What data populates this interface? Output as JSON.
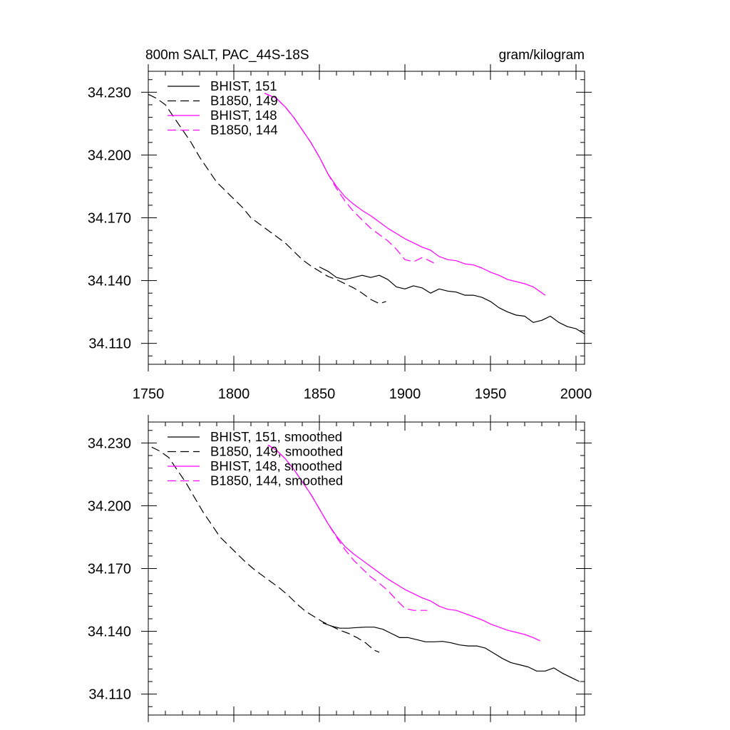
{
  "chart_data": [
    {
      "type": "line",
      "title": "800m SALT, PAC_44S-18S",
      "units": "gram/kilogram",
      "xlim": [
        1750,
        2005
      ],
      "ylim": [
        34.1,
        34.24
      ],
      "x_ticks": [
        1750,
        1800,
        1850,
        1900,
        1950,
        2000
      ],
      "x_tick_labels": [
        "1750",
        "1800",
        "1850",
        "1900",
        "1950",
        "2000"
      ],
      "y_ticks": [
        34.11,
        34.14,
        34.17,
        34.2,
        34.23
      ],
      "y_tick_labels": [
        "34.110",
        "34.140",
        "34.170",
        "34.200",
        "34.230"
      ],
      "legend_position": "top-left",
      "series": [
        {
          "name": "BHIST, 151",
          "color": "#000000",
          "dash": "solid",
          "x": [
            1850,
            1855,
            1860,
            1865,
            1870,
            1875,
            1880,
            1885,
            1890,
            1895,
            1900,
            1905,
            1910,
            1915,
            1920,
            1925,
            1930,
            1935,
            1940,
            1945,
            1950,
            1955,
            1960,
            1965,
            1970,
            1975,
            1980,
            1985,
            1990,
            1995,
            2000,
            2005
          ],
          "y": [
            34.1465,
            34.1445,
            34.1415,
            34.1405,
            34.1415,
            34.1425,
            34.1415,
            34.1425,
            34.1405,
            34.137,
            34.136,
            34.1375,
            34.1365,
            34.134,
            34.136,
            34.135,
            34.1345,
            34.133,
            34.133,
            34.132,
            34.13,
            34.127,
            34.125,
            34.1235,
            34.123,
            34.12,
            34.121,
            34.123,
            34.12,
            34.118,
            34.117,
            34.1145
          ]
        },
        {
          "name": "B1850, 149",
          "color": "#000000",
          "dash": "dashed",
          "x": [
            1750,
            1755,
            1760,
            1765,
            1770,
            1775,
            1780,
            1785,
            1790,
            1795,
            1800,
            1805,
            1810,
            1815,
            1820,
            1825,
            1830,
            1835,
            1840,
            1845,
            1850,
            1855,
            1860,
            1865,
            1870,
            1875,
            1880,
            1885,
            1889
          ],
          "y": [
            34.229,
            34.227,
            34.224,
            34.218,
            34.212,
            34.206,
            34.199,
            34.193,
            34.187,
            34.183,
            34.179,
            34.175,
            34.17,
            34.167,
            34.164,
            34.161,
            34.158,
            34.154,
            34.15,
            34.147,
            34.1445,
            34.142,
            34.1405,
            34.1385,
            34.1365,
            34.134,
            34.131,
            34.129,
            34.13
          ]
        },
        {
          "name": "BHIST, 148",
          "color": "#FF00FF",
          "dash": "solid",
          "x": [
            1818,
            1825,
            1830,
            1835,
            1840,
            1845,
            1850,
            1855,
            1860,
            1865,
            1870,
            1875,
            1880,
            1885,
            1890,
            1895,
            1900,
            1905,
            1910,
            1915,
            1920,
            1925,
            1930,
            1935,
            1940,
            1945,
            1950,
            1955,
            1960,
            1965,
            1970,
            1975,
            1982
          ],
          "y": [
            34.2295,
            34.227,
            34.223,
            34.218,
            34.212,
            34.206,
            34.199,
            34.191,
            34.185,
            34.18,
            34.1765,
            34.1735,
            34.171,
            34.168,
            34.165,
            34.1625,
            34.16,
            34.158,
            34.156,
            34.1545,
            34.1515,
            34.15,
            34.1495,
            34.148,
            34.1475,
            34.146,
            34.144,
            34.1425,
            34.1405,
            34.1395,
            34.1385,
            34.137,
            34.133
          ]
        },
        {
          "name": "B1850, 144",
          "color": "#FF00FF",
          "dash": "dashed",
          "x": [
            1818,
            1825,
            1830,
            1835,
            1840,
            1845,
            1850,
            1855,
            1860,
            1865,
            1870,
            1875,
            1880,
            1885,
            1890,
            1895,
            1900,
            1905,
            1910,
            1913,
            1918
          ],
          "y": [
            34.2295,
            34.227,
            34.223,
            34.218,
            34.212,
            34.206,
            34.199,
            34.191,
            34.184,
            34.178,
            34.173,
            34.169,
            34.165,
            34.162,
            34.159,
            34.155,
            34.15,
            34.149,
            34.151,
            34.15,
            34.148
          ]
        }
      ]
    },
    {
      "type": "line",
      "title": "",
      "units": "",
      "xlim": [
        1750,
        2005
      ],
      "ylim": [
        34.1,
        34.24
      ],
      "x_ticks": [
        1750,
        1800,
        1850,
        1900,
        1950,
        2000
      ],
      "x_tick_labels": [],
      "y_ticks": [
        34.11,
        34.14,
        34.17,
        34.2,
        34.23
      ],
      "y_tick_labels": [
        "34.110",
        "34.140",
        "34.170",
        "34.200",
        "34.230"
      ],
      "legend_position": "top-left",
      "series": [
        {
          "name": "BHIST, 151, smoothed",
          "color": "#000000",
          "dash": "solid",
          "x": [
            1852,
            1857,
            1862,
            1867,
            1872,
            1877,
            1882,
            1887,
            1892,
            1897,
            1902,
            1907,
            1912,
            1917,
            1922,
            1927,
            1932,
            1937,
            1942,
            1947,
            1952,
            1957,
            1962,
            1967,
            1972,
            1977,
            1982,
            1987,
            1992,
            1997,
            2002
          ],
          "y": [
            34.144,
            34.1425,
            34.1415,
            34.1415,
            34.1418,
            34.142,
            34.142,
            34.141,
            34.139,
            34.137,
            34.137,
            34.136,
            34.135,
            34.135,
            34.1352,
            34.1345,
            34.1335,
            34.133,
            34.133,
            34.132,
            34.1295,
            34.127,
            34.125,
            34.124,
            34.123,
            34.121,
            34.121,
            34.1225,
            34.12,
            34.118,
            34.116
          ]
        },
        {
          "name": "B1850, 149, smoothed",
          "color": "#000000",
          "dash": "dashed",
          "x": [
            1752,
            1757,
            1762,
            1767,
            1772,
            1777,
            1782,
            1787,
            1792,
            1797,
            1802,
            1807,
            1812,
            1817,
            1822,
            1827,
            1832,
            1837,
            1842,
            1847,
            1852,
            1857,
            1862,
            1867,
            1872,
            1877,
            1882,
            1885
          ],
          "y": [
            34.228,
            34.226,
            34.223,
            34.217,
            34.211,
            34.204,
            34.197,
            34.191,
            34.185,
            34.181,
            34.177,
            34.173,
            34.1695,
            34.1665,
            34.1635,
            34.1605,
            34.157,
            34.153,
            34.1495,
            34.147,
            34.1445,
            34.1425,
            34.1405,
            34.139,
            34.137,
            34.1345,
            34.131,
            34.13
          ]
        },
        {
          "name": "BHIST, 148, smoothed",
          "color": "#FF00FF",
          "dash": "solid",
          "x": [
            1820,
            1825,
            1830,
            1835,
            1840,
            1845,
            1850,
            1855,
            1860,
            1865,
            1870,
            1875,
            1880,
            1885,
            1890,
            1895,
            1900,
            1905,
            1910,
            1915,
            1920,
            1925,
            1930,
            1935,
            1940,
            1945,
            1950,
            1955,
            1960,
            1965,
            1970,
            1975,
            1979
          ],
          "y": [
            34.229,
            34.2265,
            34.2225,
            34.2175,
            34.2115,
            34.2055,
            34.1985,
            34.1915,
            34.1855,
            34.1805,
            34.177,
            34.174,
            34.171,
            34.168,
            34.165,
            34.1625,
            34.16,
            34.158,
            34.156,
            34.1545,
            34.152,
            34.1505,
            34.15,
            34.1485,
            34.147,
            34.1455,
            34.1435,
            34.142,
            34.1405,
            34.1395,
            34.1385,
            34.137,
            34.1355
          ]
        },
        {
          "name": "B1850, 144, smoothed",
          "color": "#FF00FF",
          "dash": "dashed",
          "x": [
            1820,
            1825,
            1830,
            1835,
            1840,
            1845,
            1850,
            1855,
            1860,
            1865,
            1870,
            1875,
            1880,
            1885,
            1890,
            1895,
            1900,
            1905,
            1910,
            1913
          ],
          "y": [
            34.229,
            34.2265,
            34.2225,
            34.2175,
            34.2115,
            34.2055,
            34.1985,
            34.1915,
            34.185,
            34.179,
            34.174,
            34.17,
            34.166,
            34.163,
            34.1595,
            34.155,
            34.151,
            34.15,
            34.15,
            34.15
          ]
        }
      ]
    }
  ]
}
